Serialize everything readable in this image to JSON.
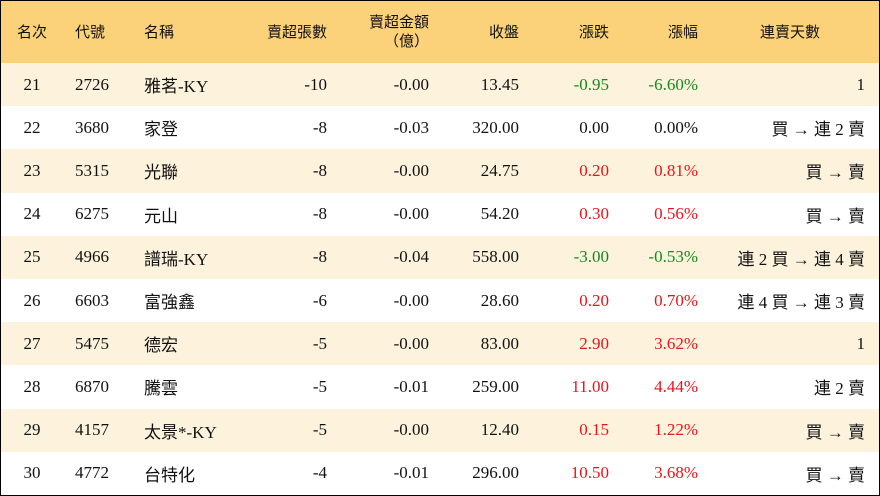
{
  "table": {
    "header": [
      "名次",
      "代號",
      "名稱",
      "賣超張數",
      "賣超金額\n（億）",
      "收盤",
      "漲跌",
      "漲幅",
      "連賣天數"
    ],
    "rows": [
      [
        "21",
        "2726",
        "雅茗-KY",
        "-10",
        "-0.00",
        "13.45",
        "-0.95",
        "-6.60%",
        "1"
      ],
      [
        "22",
        "3680",
        "家登",
        "-8",
        "-0.03",
        "320.00",
        "0.00",
        "0.00%",
        "買 → 連 2 賣"
      ],
      [
        "23",
        "5315",
        "光聯",
        "-8",
        "-0.00",
        "24.75",
        "0.20",
        "0.81%",
        "買 → 賣"
      ],
      [
        "24",
        "6275",
        "元山",
        "-8",
        "-0.00",
        "54.20",
        "0.30",
        "0.56%",
        "買 → 賣"
      ],
      [
        "25",
        "4966",
        "譜瑞-KY",
        "-8",
        "-0.04",
        "558.00",
        "-3.00",
        "-0.53%",
        "連 2 買 → 連 4 賣"
      ],
      [
        "26",
        "6603",
        "富強鑫",
        "-6",
        "-0.00",
        "28.60",
        "0.20",
        "0.70%",
        "連 4 買 → 連 3 賣"
      ],
      [
        "27",
        "5475",
        "德宏",
        "-5",
        "-0.00",
        "83.00",
        "2.90",
        "3.62%",
        "1"
      ],
      [
        "28",
        "6870",
        "騰雲",
        "-5",
        "-0.01",
        "259.00",
        "11.00",
        "4.44%",
        "連 2 賣"
      ],
      [
        "29",
        "4157",
        "太景*-KY",
        "-5",
        "-0.00",
        "12.40",
        "0.15",
        "1.22%",
        "買 → 賣"
      ],
      [
        "30",
        "4772",
        "台特化",
        "-4",
        "-0.01",
        "296.00",
        "10.50",
        "3.68%",
        "買 → 賣"
      ]
    ]
  }
}
